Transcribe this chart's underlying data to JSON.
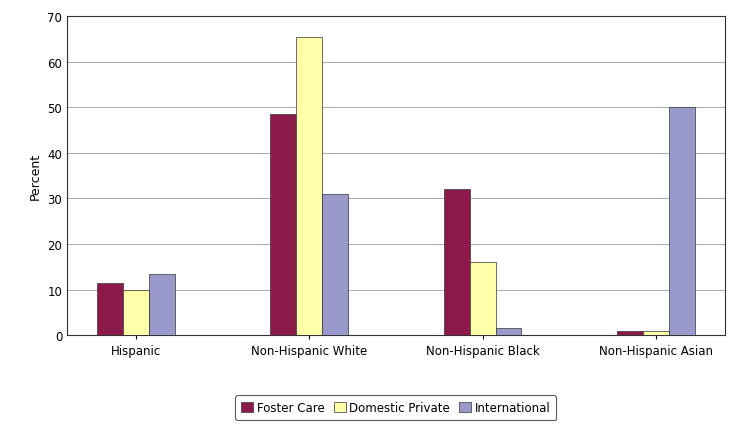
{
  "categories": [
    "Hispanic",
    "Non-Hispanic White",
    "Non-Hispanic Black",
    "Non-Hispanic Asian"
  ],
  "series": {
    "Foster Care": [
      11.5,
      48.5,
      32.0,
      1.0
    ],
    "Domestic Private": [
      10.0,
      65.5,
      16.0,
      1.0
    ],
    "International": [
      13.5,
      31.0,
      1.5,
      50.0
    ]
  },
  "bar_colors": {
    "Foster Care": "#8B1A4A",
    "Domestic Private": "#FFFFAA",
    "International": "#9999CC"
  },
  "ylabel": "Percent",
  "ylim": [
    0,
    70
  ],
  "yticks": [
    0,
    10,
    20,
    30,
    40,
    50,
    60,
    70
  ],
  "legend_labels": [
    "Foster Care",
    "Domestic Private",
    "International"
  ],
  "bar_width": 0.15,
  "background_color": "#FFFFFF",
  "grid_color": "#AAAAAA",
  "edge_color": "#333333"
}
